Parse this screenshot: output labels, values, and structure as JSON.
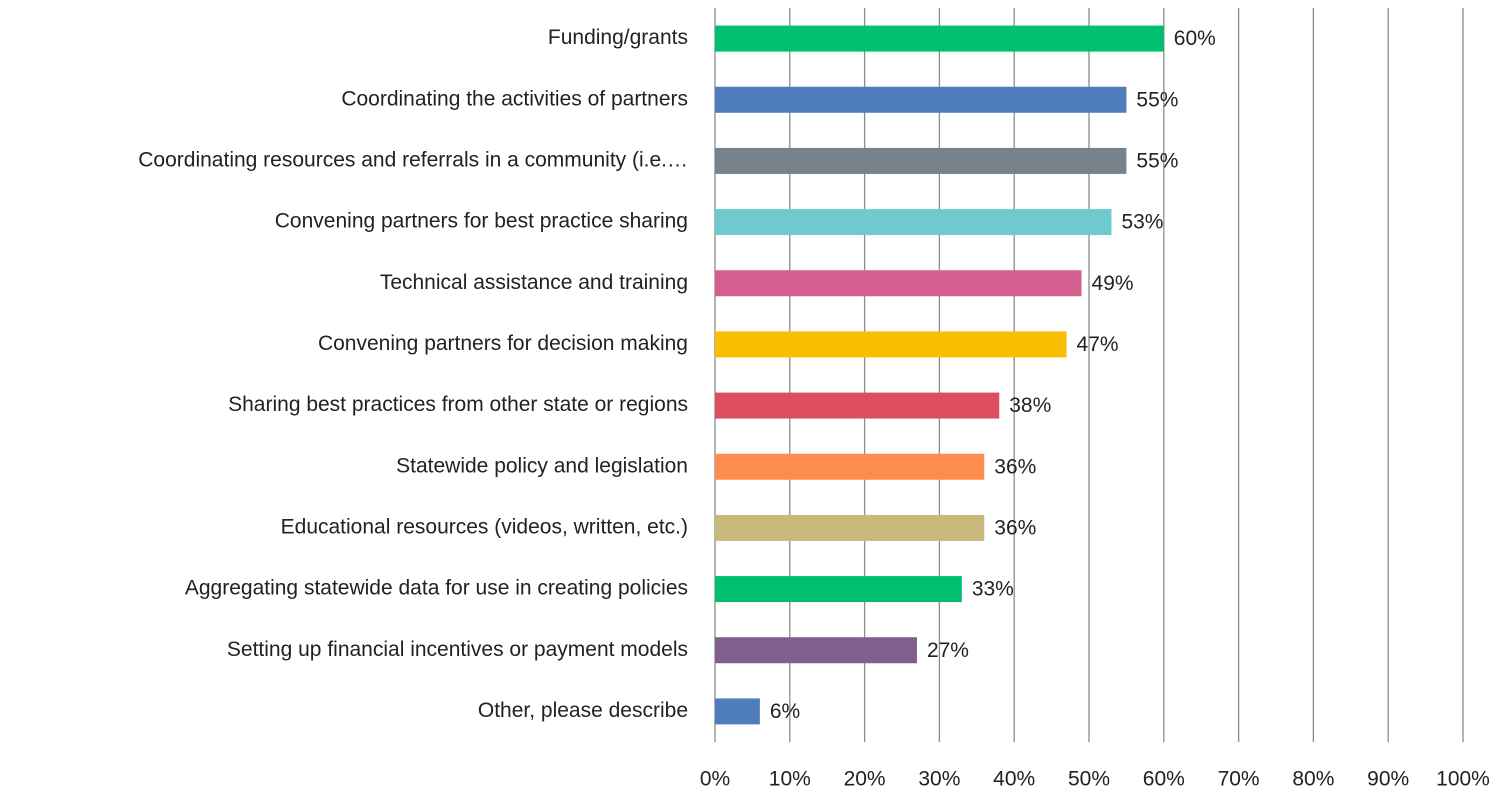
{
  "chart_data": {
    "type": "bar",
    "orientation": "horizontal",
    "categories": [
      "Funding/grants",
      "Coordinating the activities of partners",
      "Coordinating resources and referrals in a community (i.e.…",
      "Convening partners for best practice sharing",
      "Technical assistance and training",
      "Convening partners for decision making",
      "Sharing best practices from other state or regions",
      "Statewide policy and legislation",
      "Educational resources (videos, written, etc.)",
      "Aggregating statewide data for use in creating policies",
      "Setting up financial incentives or payment models",
      "Other, please describe"
    ],
    "values": [
      60,
      55,
      55,
      53,
      49,
      47,
      38,
      36,
      36,
      33,
      27,
      6
    ],
    "value_labels": [
      "60%",
      "55%",
      "55%",
      "53%",
      "49%",
      "47%",
      "38%",
      "36%",
      "36%",
      "33%",
      "27%",
      "6%"
    ],
    "colors": [
      "#00bf6f",
      "#4f7cba",
      "#78828a",
      "#6fcbcf",
      "#d45f8f",
      "#f8be00",
      "#dd4f5e",
      "#ff8c4f",
      "#c8b97a",
      "#00bf6f",
      "#7e5f8f",
      "#4f7cba"
    ],
    "xlim": [
      0,
      100
    ],
    "xticks": [
      {
        "value": 0,
        "label": "0%"
      },
      {
        "value": 10,
        "label": "10%"
      },
      {
        "value": 20,
        "label": "20%"
      },
      {
        "value": 30,
        "label": "30%"
      },
      {
        "value": 40,
        "label": "40%"
      },
      {
        "value": 50,
        "label": "50%"
      },
      {
        "value": 60,
        "label": "60%"
      },
      {
        "value": 70,
        "label": "70%"
      },
      {
        "value": 80,
        "label": "80%"
      },
      {
        "value": 90,
        "label": "90%"
      },
      {
        "value": 100,
        "label": "100%"
      }
    ],
    "grid": true
  }
}
